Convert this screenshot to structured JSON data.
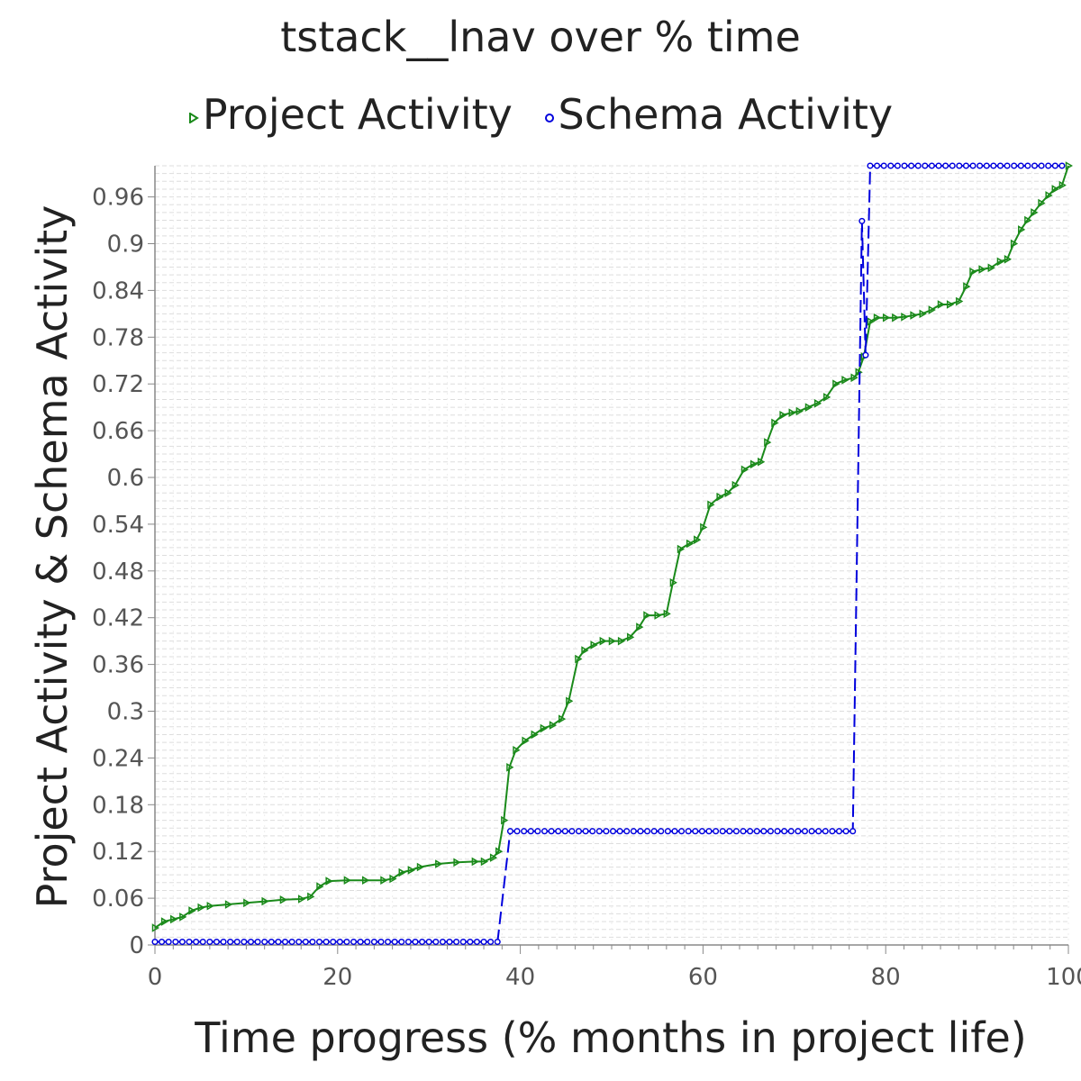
{
  "chart_data": {
    "type": "line",
    "title": "tstack__lnav over % time",
    "xlabel": "Time progress (% months in project life)",
    "ylabel": "Project Activity & Schema Activity",
    "xlim": [
      0,
      100
    ],
    "ylim": [
      0,
      1.0
    ],
    "xticks": [
      0,
      20,
      40,
      60,
      80,
      100
    ],
    "xtick_labels": [
      "0",
      "20",
      "40",
      "60",
      "80",
      "100"
    ],
    "yticks": [
      0,
      0.06,
      0.12,
      0.18,
      0.24,
      0.3,
      0.36,
      0.42,
      0.48,
      0.54,
      0.6,
      0.66,
      0.72,
      0.78,
      0.84,
      0.9,
      0.96
    ],
    "ytick_labels": [
      "0",
      "0.06",
      "0.12",
      "0.18",
      "0.24",
      "0.3",
      "0.36",
      "0.42",
      "0.48",
      "0.54",
      "0.6",
      "0.66",
      "0.72",
      "0.78",
      "0.84",
      "0.9",
      "0.96"
    ],
    "grid": true,
    "legend_position": "top-center",
    "series": [
      {
        "name": "Project Activity",
        "color": "#1a8a1a",
        "marker": "triangle-right",
        "line_style": "solid",
        "points": [
          [
            0,
            0.022
          ],
          [
            1,
            0.03
          ],
          [
            2,
            0.033
          ],
          [
            3,
            0.036
          ],
          [
            4,
            0.044
          ],
          [
            5,
            0.048
          ],
          [
            6,
            0.05
          ],
          [
            8,
            0.052
          ],
          [
            10,
            0.054
          ],
          [
            12,
            0.056
          ],
          [
            14,
            0.058
          ],
          [
            16,
            0.059
          ],
          [
            17,
            0.062
          ],
          [
            18,
            0.075
          ],
          [
            19,
            0.082
          ],
          [
            21,
            0.083
          ],
          [
            23,
            0.083
          ],
          [
            25,
            0.083
          ],
          [
            26,
            0.085
          ],
          [
            27,
            0.093
          ],
          [
            28,
            0.096
          ],
          [
            29,
            0.1
          ],
          [
            31,
            0.104
          ],
          [
            33,
            0.106
          ],
          [
            35,
            0.107
          ],
          [
            36,
            0.107
          ],
          [
            37,
            0.112
          ],
          [
            37.6,
            0.12
          ],
          [
            38.2,
            0.16
          ],
          [
            38.8,
            0.228
          ],
          [
            39.5,
            0.25
          ],
          [
            40.5,
            0.262
          ],
          [
            41.5,
            0.27
          ],
          [
            42.5,
            0.278
          ],
          [
            43.5,
            0.282
          ],
          [
            44.5,
            0.29
          ],
          [
            45.3,
            0.313
          ],
          [
            46.3,
            0.367
          ],
          [
            47,
            0.378
          ],
          [
            48,
            0.385
          ],
          [
            49,
            0.39
          ],
          [
            50,
            0.39
          ],
          [
            51,
            0.39
          ],
          [
            52,
            0.395
          ],
          [
            53,
            0.408
          ],
          [
            53.8,
            0.423
          ],
          [
            55,
            0.423
          ],
          [
            56,
            0.425
          ],
          [
            56.7,
            0.465
          ],
          [
            57.5,
            0.508
          ],
          [
            58.5,
            0.515
          ],
          [
            59.3,
            0.52
          ],
          [
            60,
            0.536
          ],
          [
            60.8,
            0.565
          ],
          [
            61.8,
            0.575
          ],
          [
            62.7,
            0.58
          ],
          [
            63.5,
            0.59
          ],
          [
            64.5,
            0.61
          ],
          [
            65.5,
            0.617
          ],
          [
            66.3,
            0.62
          ],
          [
            67,
            0.645
          ],
          [
            67.8,
            0.67
          ],
          [
            68.7,
            0.68
          ],
          [
            69.7,
            0.683
          ],
          [
            70.5,
            0.685
          ],
          [
            71.5,
            0.69
          ],
          [
            72.5,
            0.695
          ],
          [
            73.5,
            0.703
          ],
          [
            74.5,
            0.72
          ],
          [
            75.5,
            0.725
          ],
          [
            76.5,
            0.728
          ],
          [
            77,
            0.735
          ],
          [
            77.6,
            0.755
          ],
          [
            78.3,
            0.8
          ],
          [
            79,
            0.805
          ],
          [
            80,
            0.805
          ],
          [
            81,
            0.805
          ],
          [
            82,
            0.806
          ],
          [
            83,
            0.808
          ],
          [
            84,
            0.81
          ],
          [
            85,
            0.815
          ],
          [
            86,
            0.822
          ],
          [
            87,
            0.822
          ],
          [
            88,
            0.826
          ],
          [
            88.8,
            0.845
          ],
          [
            89.5,
            0.864
          ],
          [
            90.5,
            0.867
          ],
          [
            91.5,
            0.869
          ],
          [
            92.5,
            0.877
          ],
          [
            93.3,
            0.88
          ],
          [
            94,
            0.9
          ],
          [
            94.8,
            0.918
          ],
          [
            95.5,
            0.93
          ],
          [
            96.2,
            0.94
          ],
          [
            97,
            0.952
          ],
          [
            97.8,
            0.962
          ],
          [
            98.5,
            0.97
          ],
          [
            99.3,
            0.975
          ],
          [
            100,
            1.0
          ]
        ]
      },
      {
        "name": "Schema Activity",
        "color": "#0000dd",
        "marker": "circle",
        "line_style": "dashed",
        "segments": [
          {
            "from": 0,
            "to": 38.1,
            "step": 0.75,
            "value": 0.004
          },
          {
            "from": 38.9,
            "to": 76.8,
            "step": 0.75,
            "value": 0.146
          },
          {
            "from": 78.3,
            "to": 100,
            "step": 0.75,
            "value": 1.0
          }
        ],
        "extra_points": [
          [
            77.4,
            0.929
          ],
          [
            77.8,
            0.757
          ]
        ]
      }
    ]
  }
}
